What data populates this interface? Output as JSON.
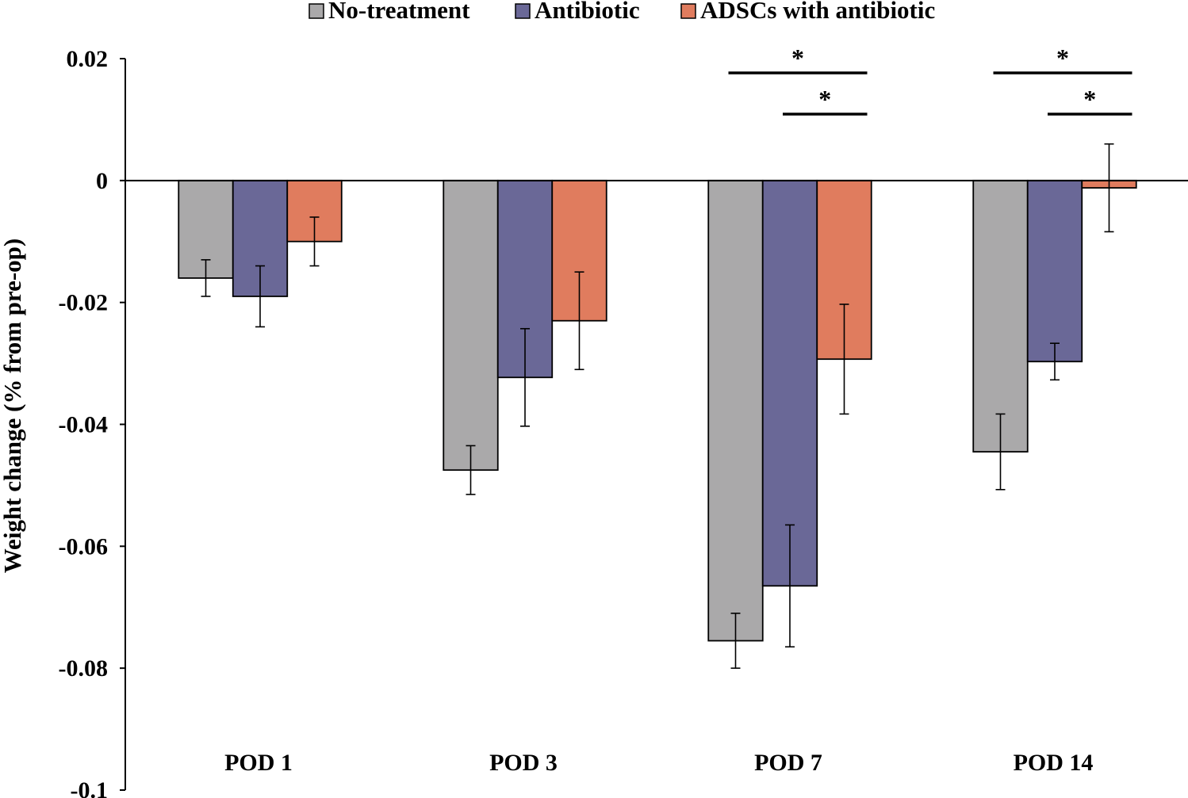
{
  "chart_data": {
    "type": "bar",
    "title": "",
    "xlabel": "",
    "ylabel": "Weight change (% from pre-op)",
    "ylim": [
      -0.1,
      0.02
    ],
    "yticks": [
      0.02,
      0,
      -0.02,
      -0.04,
      -0.06,
      -0.08,
      -0.1
    ],
    "ytick_labels": [
      "0.02",
      "0",
      "-0.02",
      "-0.04",
      "-0.06",
      "-0.08",
      "-0.1"
    ],
    "categories": [
      "POD 1",
      "POD 3",
      "POD 7",
      "POD 14"
    ],
    "grid": false,
    "legend_position": "top-center",
    "series": [
      {
        "name": "No-treatment",
        "color": "#aaa9aa",
        "values": [
          -0.016,
          -0.0475,
          -0.0755,
          -0.0445
        ],
        "errors": [
          0.003,
          0.004,
          0.0045,
          0.0062
        ]
      },
      {
        "name": "Antibiotic",
        "color": "#6a6897",
        "values": [
          -0.019,
          -0.0323,
          -0.0665,
          -0.0297
        ],
        "errors": [
          0.005,
          0.008,
          0.01,
          0.003
        ]
      },
      {
        "name": "ADSCs with antibiotic",
        "color": "#e07c5e",
        "values": [
          -0.01,
          -0.023,
          -0.0293,
          -0.0012
        ],
        "errors": [
          0.004,
          0.008,
          0.009,
          0.0072
        ]
      }
    ],
    "significance": [
      {
        "category": 2,
        "from_series": 0,
        "to_series": 2,
        "label": "*"
      },
      {
        "category": 2,
        "from_series": 1,
        "to_series": 2,
        "label": "*"
      },
      {
        "category": 3,
        "from_series": 0,
        "to_series": 2,
        "label": "*"
      },
      {
        "category": 3,
        "from_series": 1,
        "to_series": 2,
        "label": "*"
      }
    ]
  }
}
